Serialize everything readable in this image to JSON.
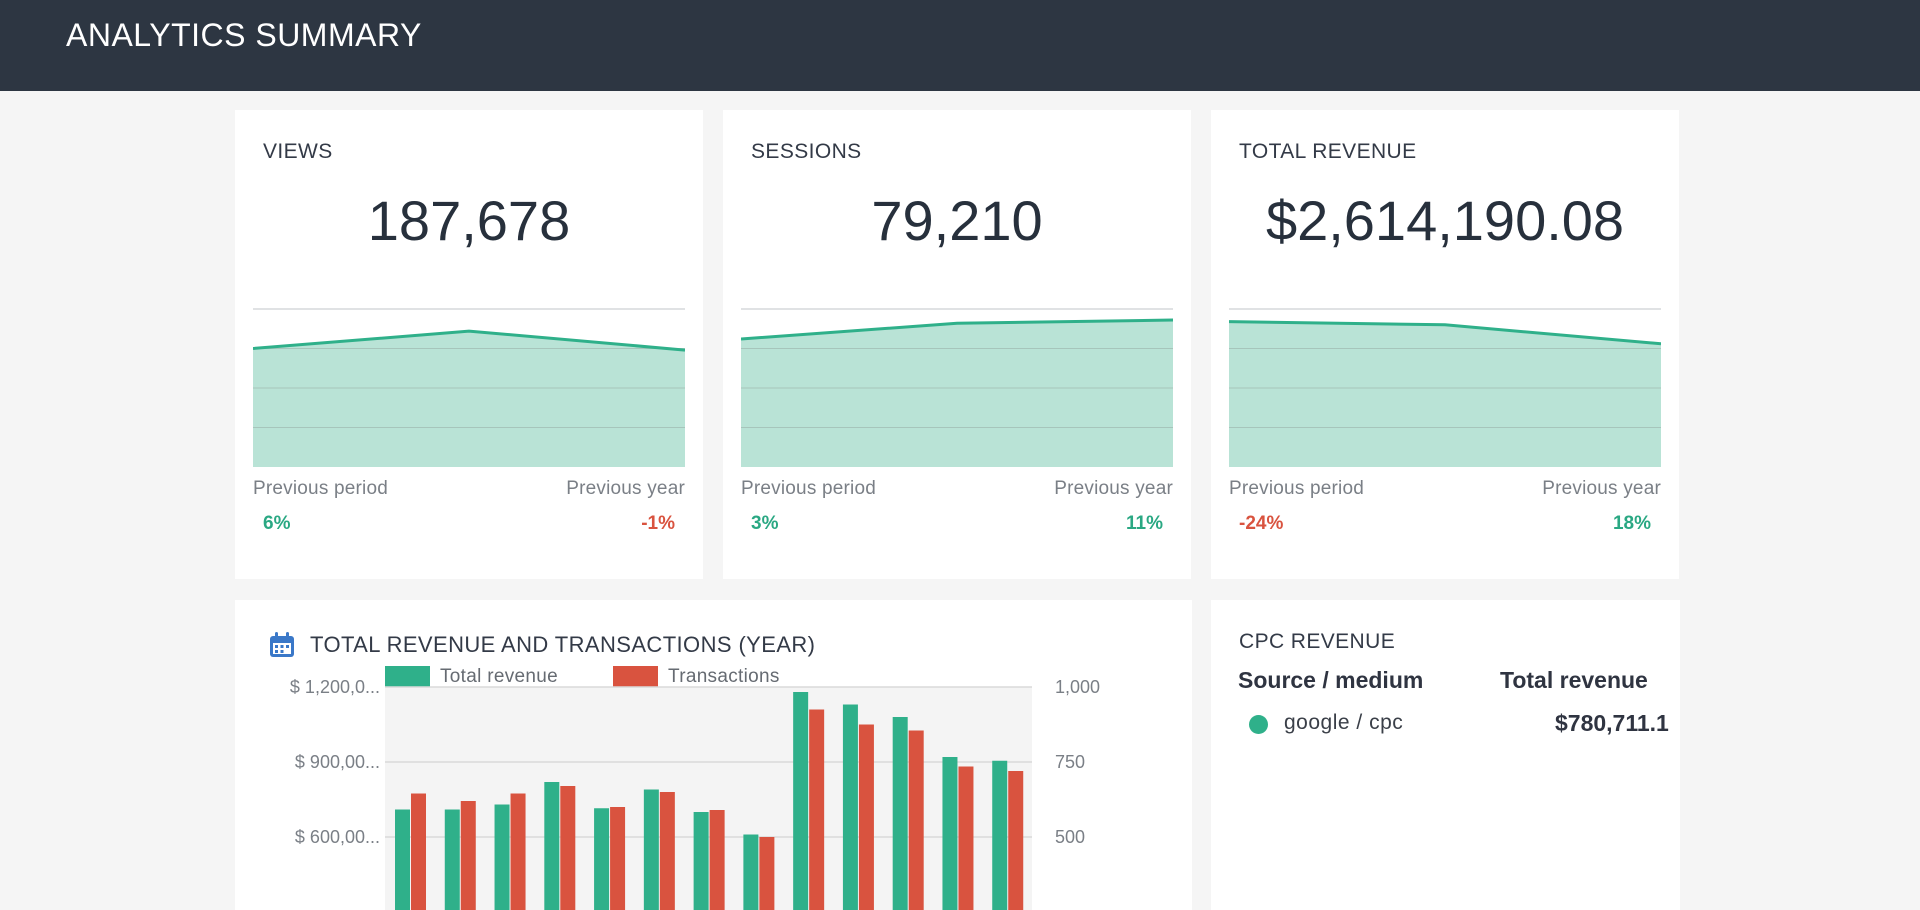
{
  "header": {
    "title": "ANALYTICS SUMMARY"
  },
  "colors": {
    "header_bg": "#2d3642",
    "accent_green": "#2fb08a",
    "area_fill": "#b9e3d6",
    "negative_red": "#d9533f",
    "positive_green": "#2aa883"
  },
  "metrics": [
    {
      "label": "VIEWS",
      "value": "187,678",
      "prev_period_label": "Previous period",
      "prev_year_label": "Previous year",
      "prev_period_change": "6%",
      "prev_year_change": "-1%",
      "trend": [
        0.75,
        0.86,
        0.74
      ]
    },
    {
      "label": "SESSIONS",
      "value": "79,210",
      "prev_period_label": "Previous period",
      "prev_year_label": "Previous year",
      "prev_period_change": "3%",
      "prev_year_change": "11%",
      "trend": [
        0.81,
        0.91,
        0.93
      ]
    },
    {
      "label": "TOTAL REVENUE",
      "value": "$2,614,190.08",
      "prev_period_label": "Previous period",
      "prev_year_label": "Previous year",
      "prev_period_change": "-24%",
      "prev_year_change": "18%",
      "trend": [
        0.92,
        0.9,
        0.78
      ]
    }
  ],
  "revenue_chart": {
    "title": "TOTAL REVENUE AND TRANSACTIONS (YEAR)",
    "icon": "calendar-icon",
    "chart_data": {
      "type": "bar",
      "title": "TOTAL REVENUE AND TRANSACTIONS (YEAR)",
      "series": [
        {
          "name": "Total revenue",
          "axis": "left",
          "color": "#2fb08a",
          "values": [
            710000,
            710000,
            730000,
            820000,
            715000,
            790000,
            700000,
            610000,
            1180000,
            1130000,
            1080000,
            920000,
            905000
          ]
        },
        {
          "name": "Transactions",
          "axis": "right",
          "color": "#d9533f",
          "values": [
            645,
            620,
            645,
            670,
            600,
            650,
            590,
            500,
            925,
            875,
            855,
            735,
            720
          ]
        }
      ],
      "left_axis": {
        "ticks": [
          "$ 1,200,0...",
          "$ 900,00...",
          "$ 600,00..."
        ],
        "tick_values": [
          1200000,
          900000,
          600000
        ]
      },
      "right_axis": {
        "ticks": [
          "1,000",
          "750",
          "500"
        ],
        "tick_values": [
          1000,
          750,
          500
        ]
      },
      "legend": "top",
      "grid": true
    }
  },
  "cpc": {
    "title": "CPC REVENUE",
    "col_source": "Source / medium",
    "col_revenue": "Total revenue",
    "rows": [
      {
        "source": "google / cpc",
        "revenue": "$780,711.1",
        "dot_color": "#2fb08a"
      }
    ]
  }
}
